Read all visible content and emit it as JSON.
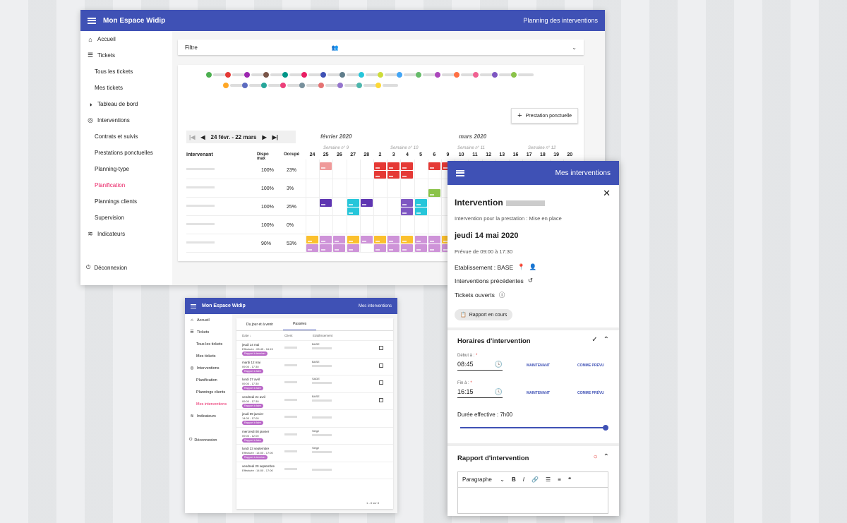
{
  "app": {
    "title": "Mon Espace Widip"
  },
  "win1": {
    "header_right": "Planning des interventions",
    "sidebar": [
      {
        "label": "Accueil",
        "icon": "home-icon",
        "sub": false
      },
      {
        "label": "Tickets",
        "icon": "list-icon",
        "sub": false
      },
      {
        "label": "Tous les tickets",
        "sub": true
      },
      {
        "label": "Mes tickets",
        "sub": true
      },
      {
        "label": "Tableau de bord",
        "icon": "pie-chart-icon",
        "sub": false
      },
      {
        "label": "Interventions",
        "icon": "target-icon",
        "sub": false
      },
      {
        "label": "Contrats et suivis",
        "sub": true
      },
      {
        "label": "Prestations ponctuelles",
        "sub": true
      },
      {
        "label": "Planning-type",
        "sub": true
      },
      {
        "label": "Planification",
        "sub": true,
        "active": true
      },
      {
        "label": "Plannings clients",
        "sub": true
      },
      {
        "label": "Supervision",
        "sub": true
      },
      {
        "label": "Indicateurs",
        "icon": "wifi-icon",
        "sub": false
      }
    ],
    "logout": "Déconnexion",
    "filter_label": "Filtre",
    "add_button": "Prestation ponctuelle",
    "date_range": "24 févr. - 22 mars",
    "months": [
      "février 2020",
      "mars 2020"
    ],
    "weeks": [
      "Semaine n° 9",
      "Semaine n° 10",
      "Semaine n° 11",
      "Semaine n° 12"
    ],
    "col_intervenant": "Intervenant",
    "col_dispo": "Dispo max",
    "col_occupe": "Occupé",
    "days": [
      "24",
      "25",
      "26",
      "27",
      "28",
      "2",
      "3",
      "4",
      "5",
      "6",
      "9",
      "10",
      "11",
      "12",
      "13",
      "16",
      "17",
      "18",
      "19",
      "20"
    ],
    "rows": [
      {
        "dispo": "100%",
        "occupe": "23%"
      },
      {
        "dispo": "100%",
        "occupe": "3%"
      },
      {
        "dispo": "100%",
        "occupe": "25%"
      },
      {
        "dispo": "100%",
        "occupe": "0%"
      },
      {
        "dispo": "90%",
        "occupe": "53%"
      }
    ]
  },
  "win2": {
    "header_right": "Mes interventions",
    "sidebar": [
      {
        "label": "Accueil",
        "icon": "home-icon",
        "sub": false
      },
      {
        "label": "Tickets",
        "icon": "list-icon",
        "sub": false
      },
      {
        "label": "Tous les tickets",
        "sub": true
      },
      {
        "label": "Mes tickets",
        "sub": true
      },
      {
        "label": "Interventions",
        "icon": "target-icon",
        "sub": false
      },
      {
        "label": "Planification",
        "sub": true
      },
      {
        "label": "Plannings clients",
        "sub": true
      },
      {
        "label": "Mes interventions",
        "sub": true,
        "active": true
      },
      {
        "label": "Indicateurs",
        "icon": "wifi-icon",
        "sub": false
      }
    ],
    "logout": "Déconnexion",
    "tabs": [
      "Du jour et à venir",
      "Passées"
    ],
    "columns": [
      "Date",
      "Client",
      "Etablissement"
    ],
    "rows": [
      {
        "date": "jeudi 14 mai",
        "sub": "Effectuée : 08:45 - 16:15",
        "pill": "Rapport à terminer",
        "est": "BASE"
      },
      {
        "date": "mardi 12 mai",
        "sub": "09:00 - 17:30",
        "pill": "Rapport à faire",
        "est": "BASE"
      },
      {
        "date": "lundi 27 avril",
        "sub": "09:00 - 17:30",
        "pill": "Rapport à faire",
        "est": "SADE"
      },
      {
        "date": "vendredi 24 avril",
        "sub": "09:00 - 17:30",
        "pill": "Rapport à faire",
        "est": "BASE"
      },
      {
        "date": "jeudi 09 janvier",
        "sub": "14:00 - 17:00",
        "pill": "Rapport à faire",
        "est": ""
      },
      {
        "date": "mercredi 08 janvier",
        "sub": "09:00 - 12:00",
        "pill": "Rapport à faire",
        "est": "Siège"
      },
      {
        "date": "lundi 23 septembre",
        "sub": "Effectuée : 14:00 - 17:00",
        "pill": "Rapport à terminer",
        "est": "Siège"
      },
      {
        "date": "vendredi 20 septembre",
        "sub": "Effectuée : 14:00 - 17:00",
        "pill": "",
        "est": ""
      }
    ],
    "pagination": "1 - 8 sur 8"
  },
  "panel": {
    "header_right": "Mes interventions",
    "title": "Intervention",
    "subtitle": "Intervention pour la prestation : Mise en place",
    "date": "jeudi 14 mai 2020",
    "prevue": "Prévue de 09:00 à 17:30",
    "etablissement": "Etablissement : BASE",
    "interventions_precedentes": "Interventions précédentes",
    "tickets_ouverts": "Tickets ouverts",
    "chip": "Rapport en cours",
    "horaires_title": "Horaires d'intervention",
    "debut_label": "Début à :",
    "debut_value": "08:45",
    "fin_label": "Fin à :",
    "fin_value": "16:15",
    "maintenant": "MAINTENANT",
    "comme_prevu": "COMME PRÉVU",
    "duree": "Durée effective : 7h00",
    "duree_fraction": 1.0,
    "rapport_title": "Rapport d'intervention",
    "paragraph_select": "Paragraphe"
  }
}
